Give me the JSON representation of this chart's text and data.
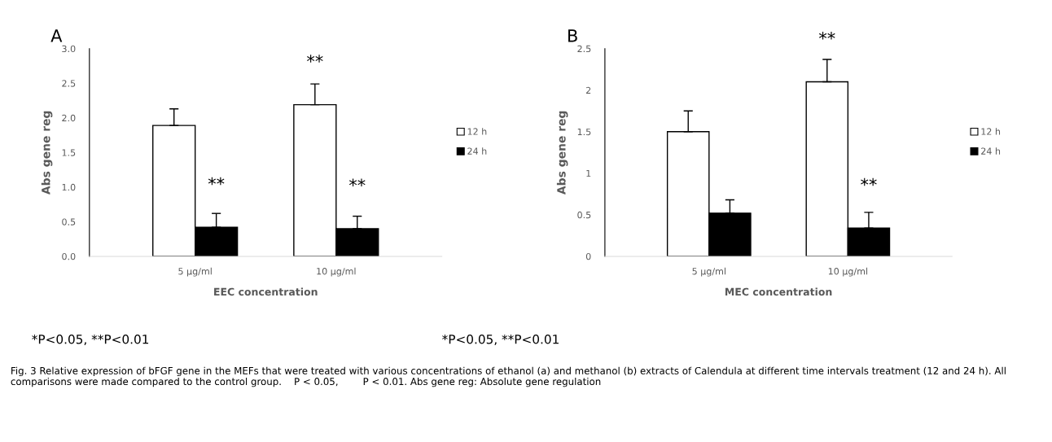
{
  "chart_data": [
    {
      "type": "bar",
      "title": "A",
      "xlabel": "EEC concentration",
      "ylabel": "Abs gene reg",
      "categories": [
        "5 μg/ml",
        "10 μg/ml"
      ],
      "series": [
        {
          "name": "12 h",
          "color": "#ffffff",
          "values": [
            1.89,
            2.19
          ],
          "errors": [
            [
              1.89,
              2.13
            ],
            [
              2.19,
              2.49
            ]
          ]
        },
        {
          "name": "24 h",
          "color": "#000000",
          "values": [
            0.42,
            0.4
          ],
          "errors": [
            [
              0.42,
              0.62
            ],
            [
              0.4,
              0.58
            ]
          ]
        }
      ],
      "ylim": [
        0,
        3
      ],
      "yticks": [
        {
          "value": 0,
          "label": "0.0"
        },
        {
          "value": 0.5,
          "label": "0.5"
        },
        {
          "value": 1,
          "label": "1.0"
        },
        {
          "value": 1.5,
          "label": "1.5"
        },
        {
          "value": 2,
          "label": "2.0"
        },
        {
          "value": 2.5,
          "label": "2.5"
        },
        {
          "value": 3,
          "label": "3.0"
        }
      ],
      "grid": false,
      "legend": "right",
      "annotations": [
        {
          "text": "**",
          "x": "5 μg/ml",
          "y": 0.42
        },
        {
          "text": "**",
          "x": "10 μg/ml",
          "y": 2.19
        },
        {
          "text": "**",
          "x": "10 μg/ml",
          "y": 0.4
        },
        "*P<0.05, **P<0.01",
        "Fig. 3 Relative expression of bFGF gene in the MEFs that were treated with various concentrations of ethanol (a) and methanol (b) extracts of Calendula at different time intervals treatment (12 and 24 h). All comparisons were made compared to the control group.    P < 0.05,        P < 0.01. Abs gene reg: Absolute gene regulation"
      ]
    },
    {
      "type": "bar",
      "title": "B",
      "xlabel": "MEC concentration",
      "ylabel": "Abs gene reg",
      "categories": [
        "5 μg/ml",
        "10 μg/ml"
      ],
      "series": [
        {
          "name": "12 h",
          "color": "#ffffff",
          "values": [
            1.5,
            2.1
          ],
          "errors": [
            [
              1.5,
              1.75
            ],
            [
              2.1,
              2.37
            ]
          ]
        },
        {
          "name": "24 h",
          "color": "#000000",
          "values": [
            0.52,
            0.34
          ],
          "errors": [
            [
              0.52,
              0.68
            ],
            [
              0.34,
              0.53
            ]
          ]
        }
      ],
      "ylim": [
        0,
        2.5
      ],
      "yticks": [
        0,
        0.5,
        1,
        1.5,
        2,
        2.5
      ],
      "grid": false,
      "legend": "right",
      "annotations": [
        {
          "text": "**",
          "x": "10 μg/ml",
          "y": 2.1
        },
        {
          "text": "**",
          "x": "10 μg/ml",
          "y": 0.34
        },
        "*P<0.05, **P<0.01"
      ]
    }
  ]
}
